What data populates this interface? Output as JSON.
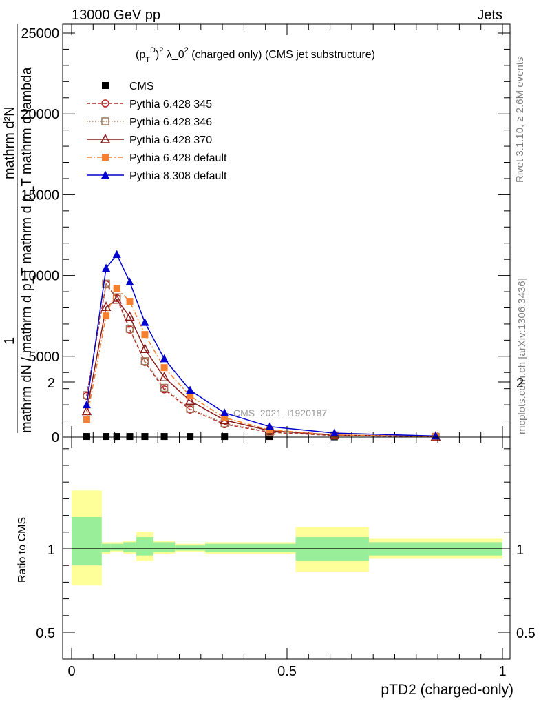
{
  "header": {
    "left": "13000 GeV pp",
    "right": "Jets"
  },
  "side_labels": {
    "top": "Rivet 3.1.10, ≥ 2.6M events",
    "bottom": "mcplots.cern.ch [arXiv:1306.3436]"
  },
  "watermark": "CMS_2021_I1920187",
  "y_axis_label": {
    "numerator": "1",
    "denominator": "mathrm dN / mathrm d p_T mathrm d p_T mathrm d lambda",
    "frac_left": "mathrm d²N"
  },
  "chart_data": [
    {
      "type": "line",
      "title": "(p_T^D)^2 λ_0^2 (charged only) (CMS jet substructure)",
      "xlabel": "pTD2 (charged-only)",
      "ylabel": "1 / mathrm dN / mathrm d p_T mathrm d lambda",
      "xlim": [
        0,
        1
      ],
      "ylim": [
        0,
        25000
      ],
      "yticks": [
        0,
        5000,
        10000,
        15000,
        20000,
        25000
      ],
      "ytick_labels": [
        "0",
        "5000",
        "10000",
        "15000",
        "20000",
        "25000"
      ],
      "grid": false,
      "legend_position": "top-left",
      "x": [
        0.035,
        0.08,
        0.105,
        0.135,
        0.17,
        0.215,
        0.275,
        0.355,
        0.46,
        0.61,
        0.845
      ],
      "series": [
        {
          "name": "CMS",
          "marker": "square-filled",
          "color": "#000000",
          "values": [
            40,
            40,
            40,
            40,
            40,
            40,
            40,
            40,
            40,
            20,
            10
          ]
        },
        {
          "name": "Pythia 6.428 345",
          "marker": "circle-open",
          "line": "dashed",
          "color": "#b22222",
          "values": [
            2550,
            9450,
            8600,
            6650,
            4650,
            2950,
            1700,
            800,
            300,
            100,
            20
          ]
        },
        {
          "name": "Pythia 6.428 346",
          "marker": "square-open",
          "line": "dotted",
          "color": "#a0785a",
          "values": [
            2600,
            9500,
            8650,
            6700,
            4700,
            3050,
            1750,
            850,
            320,
            100,
            20
          ]
        },
        {
          "name": "Pythia 6.428 370",
          "marker": "triangle-open",
          "line": "solid",
          "color": "#8b1a1a",
          "values": [
            1600,
            8050,
            8500,
            7450,
            5450,
            3700,
            2250,
            1050,
            400,
            130,
            30
          ]
        },
        {
          "name": "Pythia 6.428 default",
          "marker": "square-filled",
          "line": "dashdot",
          "color": "#f58032",
          "values": [
            1100,
            7500,
            9200,
            8400,
            6350,
            4300,
            2550,
            1200,
            450,
            140,
            30
          ]
        },
        {
          "name": "Pythia 8.308 default",
          "marker": "triangle-filled",
          "line": "solid",
          "color": "#0000cc",
          "values": [
            2000,
            10450,
            11300,
            9600,
            7100,
            4850,
            2900,
            1500,
            650,
            250,
            70
          ]
        }
      ]
    },
    {
      "type": "area",
      "title": "",
      "xlabel": "pTD2 (charged-only)",
      "ylabel": "Ratio to CMS",
      "xlim": [
        0,
        1
      ],
      "ylim": [
        0.5,
        2.25
      ],
      "xticks": [
        0,
        0.5,
        1
      ],
      "xtick_labels": [
        "0",
        "0.5",
        "1"
      ],
      "yticks": [
        0.5,
        1,
        2
      ],
      "ytick_labels": [
        "0.5",
        "1",
        "2"
      ],
      "bands": [
        {
          "x0": 0.0,
          "x1": 0.07,
          "stat": [
            0.9,
            1.19
          ],
          "total": [
            0.78,
            1.35
          ]
        },
        {
          "x0": 0.07,
          "x1": 0.09,
          "stat": [
            0.98,
            1.03
          ],
          "total": [
            0.97,
            1.04
          ]
        },
        {
          "x0": 0.09,
          "x1": 0.12,
          "stat": [
            0.99,
            1.03
          ],
          "total": [
            0.98,
            1.04
          ]
        },
        {
          "x0": 0.12,
          "x1": 0.15,
          "stat": [
            0.98,
            1.04
          ],
          "total": [
            0.97,
            1.05
          ]
        },
        {
          "x0": 0.15,
          "x1": 0.19,
          "stat": [
            0.96,
            1.07
          ],
          "total": [
            0.93,
            1.1
          ]
        },
        {
          "x0": 0.19,
          "x1": 0.24,
          "stat": [
            0.98,
            1.04
          ],
          "total": [
            0.97,
            1.05
          ]
        },
        {
          "x0": 0.24,
          "x1": 0.31,
          "stat": [
            0.99,
            1.02
          ],
          "total": [
            0.98,
            1.03
          ]
        },
        {
          "x0": 0.31,
          "x1": 0.52,
          "stat": [
            0.98,
            1.03
          ],
          "total": [
            0.97,
            1.04
          ]
        },
        {
          "x0": 0.52,
          "x1": 0.69,
          "stat": [
            0.93,
            1.07
          ],
          "total": [
            0.86,
            1.13
          ]
        },
        {
          "x0": 0.69,
          "x1": 1.0,
          "stat": [
            0.96,
            1.04
          ],
          "total": [
            0.94,
            1.06
          ]
        }
      ],
      "colors": {
        "stat": "#99ee99",
        "total": "#ffff99"
      }
    }
  ]
}
